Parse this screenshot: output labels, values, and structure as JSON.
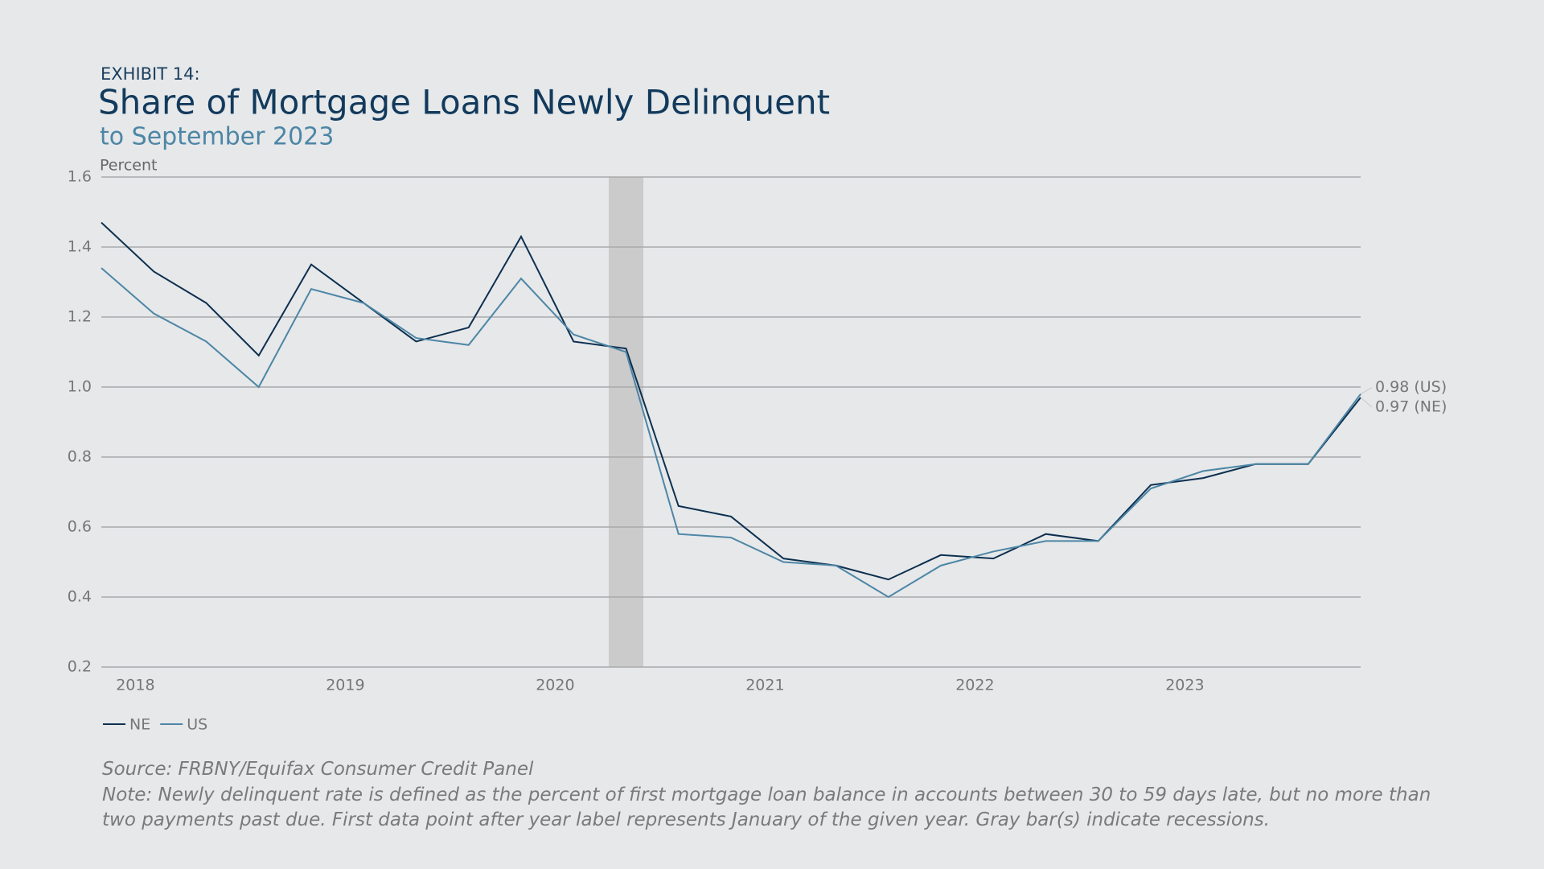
{
  "chart_data": {
    "type": "line",
    "label": "EXHIBIT 14:",
    "title": "Share of Mortgage Loans Newly Delinquent",
    "subtitle": "to September 2023",
    "y_label": "Percent",
    "categories": [
      null,
      "2018",
      null,
      null,
      null,
      "2019",
      null,
      null,
      null,
      "2020",
      null,
      null,
      null,
      "2021",
      null,
      null,
      null,
      "2022",
      null,
      null,
      null,
      "2023",
      null,
      null,
      null
    ],
    "series": [
      {
        "name": "NE",
        "color": "#0d2f4f",
        "values": [
          1.47,
          1.33,
          1.24,
          1.09,
          1.35,
          1.24,
          1.13,
          1.17,
          1.43,
          1.13,
          1.11,
          0.66,
          0.63,
          0.51,
          0.49,
          0.45,
          0.52,
          0.51,
          0.58,
          0.56,
          0.72,
          0.74,
          0.78,
          0.78,
          0.97
        ],
        "value_labels": [
          null,
          null,
          null,
          null,
          null,
          null,
          null,
          null,
          null,
          null,
          null,
          null,
          null,
          null,
          null,
          null,
          null,
          null,
          null,
          null,
          null,
          null,
          null,
          null,
          "0.97 (NE)"
        ]
      },
      {
        "name": "US",
        "color": "#4d86a5",
        "values": [
          1.34,
          1.21,
          1.13,
          1.0,
          1.28,
          1.24,
          1.14,
          1.12,
          1.31,
          1.15,
          1.1,
          0.58,
          0.57,
          0.5,
          0.49,
          0.4,
          0.49,
          0.53,
          0.56,
          0.56,
          0.71,
          0.76,
          0.78,
          0.78,
          0.98
        ],
        "value_labels": [
          null,
          null,
          null,
          null,
          null,
          null,
          null,
          null,
          null,
          null,
          null,
          null,
          null,
          null,
          null,
          null,
          null,
          null,
          null,
          null,
          null,
          null,
          null,
          null,
          "0.98 (US)"
        ]
      }
    ],
    "ylim": [
      0.2,
      1.6
    ],
    "yticks": [
      {
        "value": 0.2,
        "label": "0.2"
      },
      {
        "value": 0.4,
        "label": "0.4"
      },
      {
        "value": 0.6,
        "label": "0.6"
      },
      {
        "value": 0.8,
        "label": "0.8"
      },
      {
        "value": 1.0,
        "label": "1.0"
      },
      {
        "value": 1.2,
        "label": "1.2"
      },
      {
        "value": 1.4,
        "label": "1.4"
      },
      {
        "value": 1.6,
        "label": "1.6"
      }
    ],
    "grid": true,
    "legend": "bottom-left",
    "source": "Source: FRBNY/Equifax Consumer Credit Panel",
    "note": "Note: Newly delinquent rate is defined as the percent of first mortgage loan balance in accounts between 30 to 59 days late, but no more than two payments past due. First data point after year label represents January of the given year. Gray bar(s) indicate recessions."
  }
}
